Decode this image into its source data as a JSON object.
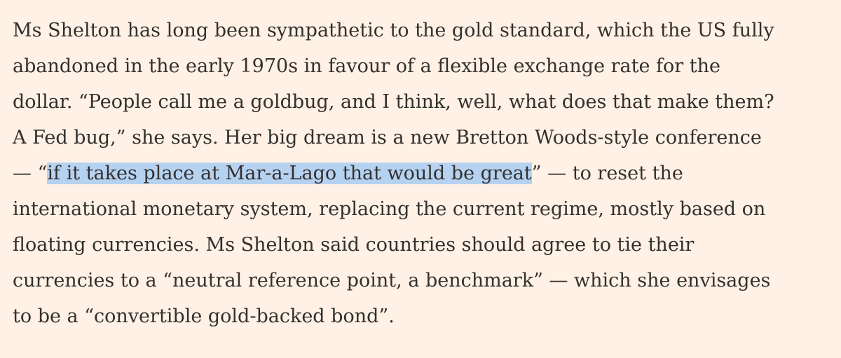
{
  "paragraph": {
    "lines": [
      "Ms Shelton has long been sympathetic to the gold standard, which the US fully",
      "abandoned in the early 1970s in favour of a flexible exchange rate for the",
      "dollar. “People call me a goldbug, and I think, well, what does that make them?",
      "A Fed bug,” she says. Her big dream is a new Bretton Woods-style conference",
      {
        "before": "— “",
        "selected": "if it takes place at Mar-a-Lago that would be great",
        "after": "” — to reset the"
      },
      "international monetary system, replacing the current regime, mostly based on",
      "floating currencies. Ms Shelton said countries should agree to tie their",
      "currencies to a “neutral reference point, a benchmark” — which she envisages",
      "to be a “convertible gold-backed bond”."
    ]
  }
}
